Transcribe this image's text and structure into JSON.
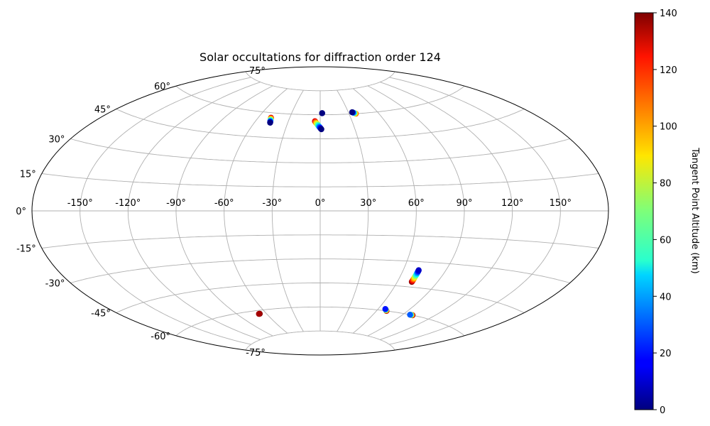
{
  "chart_data": {
    "type": "scatter",
    "projection": "aitoff",
    "title": "Solar occultations for diffraction order 124",
    "grid": true,
    "lon_ticks": [
      "-150°",
      "-120°",
      "-90°",
      "-60°",
      "-30°",
      "0°",
      "30°",
      "60°",
      "90°",
      "120°",
      "150°"
    ],
    "lon_tick_values": [
      -150,
      -120,
      -90,
      -60,
      -30,
      0,
      30,
      60,
      90,
      120,
      150
    ],
    "lat_ticks": [
      "-75°",
      "-60°",
      "-45°",
      "-30°",
      "-15°",
      "0°",
      "15°",
      "30°",
      "45°",
      "60°",
      "75°"
    ],
    "lat_tick_values": [
      -75,
      -60,
      -45,
      -30,
      -15,
      0,
      15,
      30,
      45,
      60,
      75
    ],
    "colorbar": {
      "label": "Tangent Point Altitude (km)",
      "colormap": "jet",
      "range": [
        0,
        140
      ],
      "ticks": [
        "0",
        "20",
        "40",
        "60",
        "80",
        "100",
        "120",
        "140"
      ],
      "tick_values": [
        0,
        20,
        40,
        60,
        80,
        100,
        120,
        140
      ]
    },
    "tracks": [
      {
        "lon_start": -48,
        "lat_start": 57,
        "lon_end": -46,
        "lat_end": 54,
        "alt_start": 130,
        "alt_end": 0,
        "count": 14
      },
      {
        "lon_start": -5,
        "lat_start": 56,
        "lon_end": 1,
        "lat_end": 51,
        "alt_start": 130,
        "alt_end": 0,
        "count": 18
      },
      {
        "lon_start": 2,
        "lat_start": 61,
        "lon_end": 2,
        "lat_end": 61,
        "alt_start": 0,
        "alt_end": 5,
        "count": 3
      },
      {
        "lon_start": 34,
        "lat_start": 61,
        "lon_end": 37,
        "lat_end": 60,
        "alt_start": 0,
        "alt_end": 110,
        "count": 6
      },
      {
        "lon_start": 71,
        "lat_start": -35,
        "lon_end": 71,
        "lat_end": -42,
        "alt_start": 10,
        "alt_end": 140,
        "count": 22
      },
      {
        "lon_start": 67,
        "lat_start": -59,
        "lon_end": 70,
        "lat_end": -60,
        "alt_start": 20,
        "alt_end": 140,
        "count": 7
      },
      {
        "lon_start": 97,
        "lat_start": -60,
        "lon_end": 100,
        "lat_end": -60,
        "alt_start": 30,
        "alt_end": 140,
        "count": 7
      },
      {
        "lon_start": -68,
        "lat_start": -62,
        "lon_end": -67,
        "lat_end": -62,
        "alt_start": 135,
        "alt_end": 140,
        "count": 3
      }
    ]
  }
}
